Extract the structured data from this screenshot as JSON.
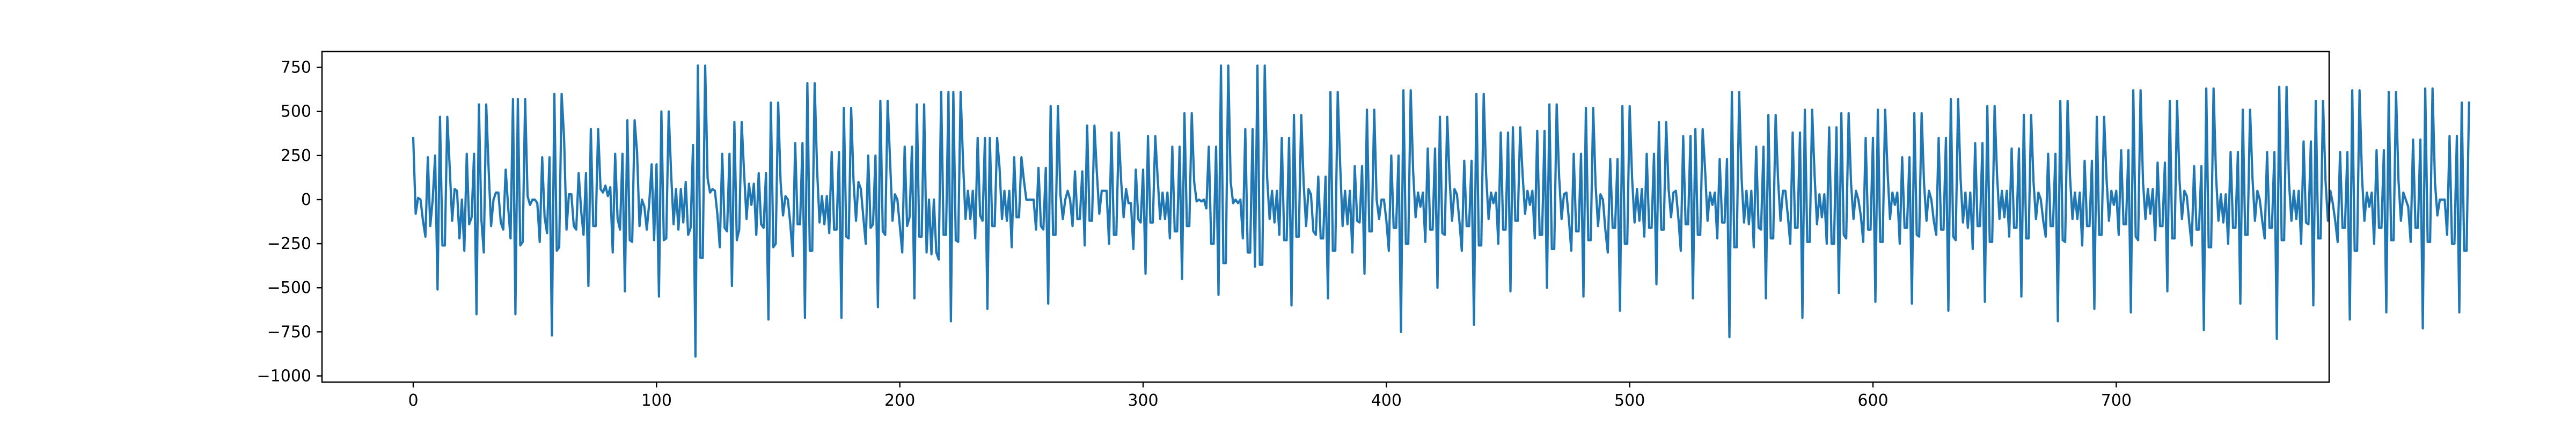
{
  "chart_data": {
    "type": "line",
    "title": "",
    "xlabel": "",
    "ylabel": "",
    "xlim": [
      -37.5,
      787.5
    ],
    "ylim": [
      -1035,
      840
    ],
    "x_ticks": [
      0,
      100,
      200,
      300,
      400,
      500,
      600,
      700
    ],
    "y_ticks": [
      750,
      500,
      250,
      0,
      -250,
      -500,
      -750,
      -1000
    ],
    "x_tick_labels": [
      "0",
      "100",
      "200",
      "300",
      "400",
      "500",
      "600",
      "700"
    ],
    "y_tick_labels": [
      "750",
      "500",
      "250",
      "0",
      "−250",
      "−500",
      "−750",
      "−1000"
    ],
    "grid": false,
    "legend": "none",
    "line_color": "#1f77b4",
    "series": [
      {
        "x_start": 0,
        "x_step": 1,
        "values": [
          350,
          -80,
          10,
          0,
          -120,
          -210,
          240,
          -150,
          0,
          250,
          -510,
          470,
          -260,
          -260,
          470,
          180,
          -120,
          60,
          50,
          -220,
          0,
          -290,
          260,
          -140,
          -100,
          260,
          -650,
          540,
          -110,
          -300,
          540,
          170,
          -150,
          0,
          40,
          40,
          -130,
          -170,
          170,
          -40,
          -220,
          570,
          -650,
          570,
          -260,
          -240,
          570,
          20,
          -30,
          0,
          0,
          -20,
          -240,
          240,
          -100,
          -190,
          240,
          -770,
          600,
          -290,
          -270,
          600,
          350,
          -170,
          30,
          30,
          -150,
          -170,
          150,
          -60,
          -200,
          150,
          -490,
          400,
          -150,
          -150,
          400,
          60,
          40,
          80,
          20,
          70,
          -300,
          260,
          -110,
          -170,
          260,
          -520,
          450,
          -230,
          -240,
          450,
          270,
          -150,
          0,
          -40,
          -170,
          -20,
          200,
          -230,
          200,
          -550,
          500,
          -230,
          -220,
          500,
          150,
          -140,
          60,
          -170,
          60,
          -130,
          100,
          -200,
          -160,
          310,
          -890,
          760,
          -330,
          -330,
          760,
          120,
          40,
          60,
          50,
          -80,
          -270,
          260,
          -160,
          -180,
          260,
          -490,
          440,
          -230,
          -170,
          440,
          150,
          -110,
          90,
          -30,
          90,
          -200,
          150,
          -140,
          -160,
          150,
          -680,
          550,
          -270,
          -250,
          550,
          100,
          -90,
          20,
          0,
          -140,
          -320,
          320,
          -140,
          -140,
          320,
          -670,
          660,
          -290,
          -290,
          660,
          170,
          -130,
          20,
          -140,
          20,
          -190,
          270,
          -170,
          -170,
          270,
          -670,
          520,
          -210,
          -220,
          520,
          100,
          -120,
          100,
          60,
          -100,
          -250,
          250,
          -160,
          -140,
          250,
          -610,
          560,
          -180,
          -200,
          560,
          220,
          -120,
          30,
          0,
          -150,
          -300,
          300,
          -150,
          -100,
          300,
          -560,
          540,
          -210,
          -210,
          540,
          -300,
          0,
          -310,
          0,
          -300,
          -340,
          610,
          -200,
          -200,
          610,
          -690,
          610,
          -230,
          -240,
          610,
          210,
          -110,
          50,
          -110,
          50,
          -220,
          350,
          -90,
          -120,
          350,
          -620,
          350,
          -150,
          -150,
          350,
          180,
          -110,
          50,
          -120,
          50,
          -270,
          240,
          -100,
          -100,
          240,
          110,
          0,
          0,
          0,
          0,
          -170,
          180,
          -150,
          -170,
          180,
          -590,
          530,
          -200,
          -200,
          530,
          30,
          -110,
          0,
          50,
          0,
          -150,
          160,
          -110,
          -110,
          160,
          -260,
          420,
          -120,
          -120,
          420,
          150,
          -80,
          50,
          50,
          50,
          -250,
          380,
          -200,
          -200,
          380,
          100,
          -100,
          60,
          -20,
          -20,
          -280,
          170,
          -110,
          -130,
          170,
          -420,
          360,
          -130,
          -130,
          360,
          120,
          -110,
          40,
          -110,
          40,
          -220,
          300,
          -180,
          -180,
          300,
          -450,
          490,
          -150,
          -150,
          490,
          100,
          -10,
          0,
          -10,
          0,
          -50,
          300,
          -250,
          -250,
          300,
          -540,
          760,
          -360,
          -360,
          760,
          100,
          -20,
          0,
          -20,
          0,
          -220,
          400,
          -300,
          -300,
          400,
          -380,
          760,
          -370,
          -370,
          760,
          120,
          -110,
          50,
          -130,
          50,
          -200,
          350,
          -230,
          -230,
          350,
          -600,
          480,
          -210,
          -210,
          480,
          90,
          -150,
          60,
          30,
          -180,
          -200,
          130,
          -220,
          -220,
          130,
          -560,
          610,
          -290,
          -290,
          610,
          200,
          -150,
          50,
          -140,
          50,
          -300,
          190,
          -120,
          -130,
          190,
          -420,
          510,
          -180,
          -180,
          510,
          0,
          -110,
          0,
          0,
          -120,
          -290,
          250,
          -160,
          -160,
          250,
          -750,
          620,
          -250,
          -250,
          620,
          160,
          -100,
          40,
          -40,
          40,
          -240,
          290,
          -170,
          -170,
          290,
          -500,
          470,
          -190,
          -200,
          470,
          110,
          -120,
          60,
          30,
          -120,
          -290,
          220,
          -150,
          -150,
          220,
          -710,
          600,
          -260,
          -260,
          600,
          140,
          -110,
          40,
          -20,
          40,
          -250,
          380,
          -170,
          -170,
          380,
          -520,
          410,
          -120,
          -120,
          410,
          140,
          -80,
          50,
          -30,
          50,
          -220,
          390,
          -200,
          -200,
          390,
          -500,
          540,
          -280,
          -280,
          540,
          130,
          -110,
          30,
          40,
          -110,
          -290,
          260,
          -180,
          -180,
          260,
          -550,
          520,
          -230,
          -230,
          520,
          80,
          -150,
          30,
          0,
          -170,
          -300,
          230,
          -160,
          -160,
          230,
          -630,
          530,
          -250,
          -250,
          530,
          120,
          -130,
          60,
          -120,
          60,
          -210,
          260,
          -160,
          -160,
          260,
          -480,
          440,
          -170,
          -170,
          440,
          60,
          -100,
          40,
          50,
          -100,
          -290,
          360,
          -140,
          -140,
          360,
          -560,
          400,
          -200,
          -200,
          400,
          170,
          -120,
          40,
          -30,
          40,
          -220,
          230,
          -130,
          -130,
          230,
          -780,
          610,
          -270,
          -270,
          610,
          120,
          -130,
          50,
          -140,
          50,
          -270,
          300,
          -160,
          -170,
          300,
          -560,
          480,
          -220,
          -220,
          480,
          110,
          -120,
          50,
          50,
          -90,
          -250,
          380,
          -160,
          -160,
          380,
          -670,
          510,
          -240,
          -240,
          510,
          140,
          -140,
          30,
          -100,
          30,
          -250,
          410,
          -250,
          -250,
          410,
          -530,
          490,
          -200,
          -220,
          490,
          90,
          -110,
          50,
          0,
          -90,
          -240,
          350,
          -170,
          -170,
          350,
          -580,
          510,
          -240,
          -240,
          510,
          160,
          -110,
          40,
          -30,
          40,
          -250,
          240,
          -160,
          -160,
          240,
          -590,
          490,
          -200,
          -210,
          490,
          90,
          -120,
          50,
          0,
          -120,
          -200,
          350,
          -170,
          -170,
          350,
          -630,
          570,
          -210,
          -230,
          570,
          120,
          -130,
          40,
          -160,
          40,
          -280,
          320,
          -150,
          -150,
          320,
          -580,
          530,
          -240,
          -240,
          530,
          140,
          -110,
          50,
          -100,
          50,
          -210,
          290,
          -160,
          -160,
          290,
          -550,
          480,
          -220,
          -220,
          480,
          100,
          -110,
          40,
          0,
          -120,
          -210,
          260,
          -150,
          -150,
          260,
          -690,
          560,
          -230,
          -240,
          560,
          130,
          -110,
          40,
          -110,
          40,
          -260,
          220,
          -150,
          -150,
          220,
          -620,
          470,
          -200,
          -200,
          470,
          120,
          -120,
          50,
          -30,
          50,
          -200,
          280,
          -140,
          -140,
          280,
          -640,
          620,
          -210,
          -230,
          620,
          100,
          -110,
          60,
          -80,
          60,
          -230,
          210,
          -150,
          -150,
          210,
          -520,
          560,
          -220,
          -220,
          560,
          110,
          -110,
          50,
          20,
          -130,
          -260,
          190,
          -170,
          -170,
          190,
          -740,
          630,
          -270,
          -270,
          630,
          140,
          -120,
          30,
          -130,
          30,
          -250,
          270,
          -160,
          -160,
          270,
          -590,
          510,
          -200,
          -200,
          510,
          120,
          -120,
          50,
          0,
          -120,
          -220,
          270,
          -160,
          -160,
          270,
          -790,
          640,
          -230,
          -230,
          640,
          100,
          -120,
          50,
          -110,
          50,
          -250,
          330,
          -130,
          -140,
          330,
          -600,
          560,
          -220,
          -220,
          560,
          110,
          -120,
          50,
          -20,
          -120,
          -240,
          270,
          -160,
          -160,
          270,
          -680,
          620,
          -290,
          -290,
          620,
          130,
          -120,
          40,
          -40,
          40,
          -250,
          280,
          -160,
          -160,
          280,
          -640,
          610,
          -230,
          -230,
          610,
          110,
          -120,
          40,
          0,
          -40,
          -240,
          340,
          -160,
          -160,
          340,
          -730,
          630,
          -240,
          -240,
          630,
          100,
          -90,
          0,
          0,
          0,
          -200,
          360,
          -250,
          -250,
          360,
          -640,
          550,
          -290,
          -290,
          550
        ]
      }
    ]
  }
}
